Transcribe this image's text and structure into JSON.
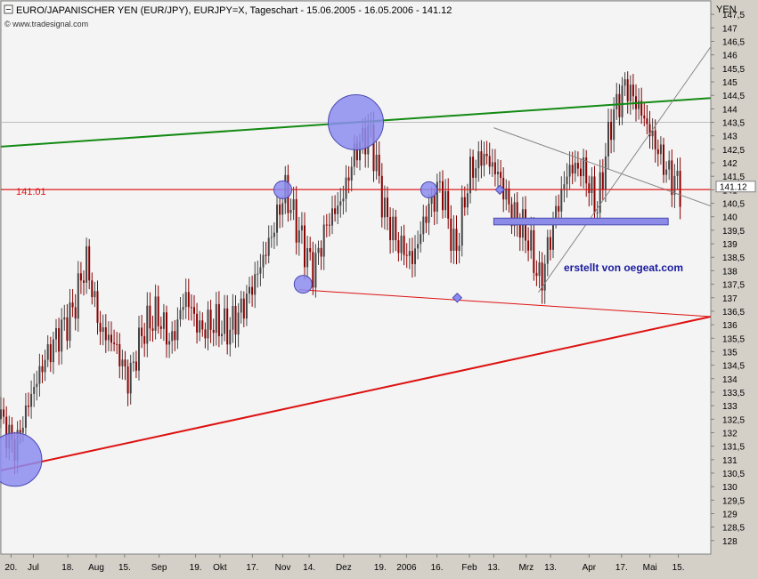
{
  "header": {
    "title": "EURO/JAPANISCHER YEN (EUR/JPY), EURJPY=X, Tageschart - 15.06.2005 - 16.05.2006 - 141.12",
    "source": "© www.tradesignal.com",
    "currency": "YEN"
  },
  "annotations": {
    "level_label": "141.01",
    "last_price": "141.12",
    "author": "erstellt von oegeat.com"
  },
  "colors": {
    "plot_bg": "#f4f4f4",
    "frame_bg": "#d4d0c8",
    "candle_up": "#444444",
    "candle_down": "#8b0000",
    "green_line": "#138a13",
    "red_line": "#dd1111",
    "support_band": "#8c8ce8",
    "circle_fill": "#8c8cf0"
  },
  "chart_data": {
    "type": "line",
    "title": "EURO/JAPANISCHER YEN (EUR/JPY), EURJPY=X, Tageschart - 15.06.2005 - 16.05.2006 - 141.12",
    "xlabel": "",
    "ylabel": "YEN",
    "ylim": [
      127.5,
      148.0
    ],
    "y_tick_labels": [
      "147,5",
      "147",
      "146,5",
      "146",
      "145,5",
      "145",
      "144,5",
      "144",
      "143,5",
      "143",
      "142,5",
      "142",
      "141,5",
      "141",
      "140,5",
      "140",
      "139,5",
      "139",
      "138,5",
      "138",
      "137,5",
      "137",
      "136,5",
      "136",
      "135,5",
      "135",
      "134,5",
      "134",
      "133,5",
      "133",
      "132,5",
      "132",
      "131,5",
      "131",
      "130,5",
      "130",
      "129,5",
      "129",
      "128,5",
      "128"
    ],
    "y_tick_values": [
      147.5,
      147,
      146.5,
      146,
      145.5,
      145,
      144.5,
      144,
      143.5,
      143,
      142.5,
      142,
      141.5,
      141,
      140.5,
      140,
      139.5,
      139,
      138.5,
      138,
      137.5,
      137,
      136.5,
      136,
      135.5,
      135,
      134.5,
      134,
      133.5,
      133,
      132.5,
      132,
      131.5,
      131,
      130.5,
      130,
      129.5,
      129,
      128.5,
      128
    ],
    "x_tick_labels": [
      "20.",
      "Jul",
      "18.",
      "Aug",
      "15.",
      "Sep",
      "19.",
      "Okt",
      "17.",
      "Nov",
      "14.",
      "Dez",
      "19.",
      "2006",
      "16.",
      "Feb",
      "13.",
      "Mrz",
      "13.",
      "Apr",
      "17.",
      "Mai",
      "15."
    ],
    "x_tick_dates": [
      "2005-06-20",
      "2005-07-01",
      "2005-07-18",
      "2005-08-01",
      "2005-08-15",
      "2005-09-01",
      "2005-09-19",
      "2005-10-01",
      "2005-10-17",
      "2005-11-01",
      "2005-11-14",
      "2005-12-01",
      "2005-12-19",
      "2006-01-01",
      "2006-01-16",
      "2006-02-01",
      "2006-02-13",
      "2006-03-01",
      "2006-03-13",
      "2006-04-01",
      "2006-04-17",
      "2006-05-01",
      "2006-05-15"
    ],
    "series": [
      {
        "x": [
          "2005-06-15",
          "2005-06-22",
          "2005-06-29",
          "2005-07-06",
          "2005-07-13",
          "2005-07-20",
          "2005-07-27",
          "2005-08-03",
          "2005-08-10",
          "2005-08-17",
          "2005-08-24",
          "2005-08-31",
          "2005-09-07",
          "2005-09-14",
          "2005-09-21",
          "2005-09-28",
          "2005-10-05",
          "2005-10-12",
          "2005-10-19",
          "2005-10-26",
          "2005-11-02",
          "2005-11-09",
          "2005-11-16",
          "2005-11-23",
          "2005-11-30",
          "2005-12-07",
          "2005-12-14",
          "2005-12-21",
          "2005-12-28",
          "2006-01-04",
          "2006-01-11",
          "2006-01-18",
          "2006-01-25",
          "2006-02-01",
          "2006-02-08",
          "2006-02-15",
          "2006-02-22",
          "2006-03-01",
          "2006-03-08",
          "2006-03-15",
          "2006-03-22",
          "2006-03-29",
          "2006-04-05",
          "2006-04-12",
          "2006-04-19",
          "2006-04-26",
          "2006-05-03",
          "2006-05-10",
          "2006-05-16"
        ],
        "values": [
          132.5,
          131.4,
          133.2,
          134.6,
          135.6,
          136.4,
          138.4,
          135.8,
          135.3,
          133.9,
          135.8,
          136.4,
          135.3,
          137.1,
          135.8,
          136.1,
          135.8,
          136.6,
          137.8,
          139.2,
          141.0,
          139.4,
          138.0,
          139.8,
          140.6,
          142.5,
          143.2,
          140.2,
          139.0,
          138.4,
          140.2,
          141.2,
          138.6,
          141.6,
          142.3,
          141.6,
          140.1,
          139.4,
          137.5,
          140.0,
          141.8,
          141.8,
          140.3,
          143.6,
          144.9,
          144.0,
          142.8,
          141.6,
          141.1
        ]
      }
    ],
    "lines": [
      {
        "name": "green-resistance-trendline",
        "from": [
          "2005-06-15",
          142.6
        ],
        "to": [
          "2006-05-31",
          144.4
        ]
      },
      {
        "name": "red-support-trendline",
        "from": [
          "2005-06-15",
          130.6
        ],
        "to": [
          "2006-05-31",
          136.3
        ]
      },
      {
        "name": "red-lower-trendline",
        "from": [
          "2005-11-09",
          137.3
        ],
        "to": [
          "2006-05-31",
          136.3
        ]
      },
      {
        "name": "gray-downtrend-line",
        "from": [
          "2006-02-13",
          143.3
        ],
        "to": [
          "2006-05-31",
          140.4
        ]
      },
      {
        "name": "gray-uptrend-line",
        "from": [
          "2006-03-07",
          137.2
        ],
        "to": [
          "2006-05-31",
          146.3
        ]
      },
      {
        "name": "horizontal-level-141-01",
        "from": [
          "2005-06-15",
          141.01
        ],
        "to": [
          "2006-05-31",
          141.01
        ]
      }
    ],
    "zones": [
      {
        "name": "support-band",
        "x_from": "2006-02-13",
        "x_to": "2006-05-10",
        "y_from": 139.7,
        "y_to": 139.95
      }
    ],
    "markers": [
      {
        "name": "low-circle-june",
        "x": "2005-06-22",
        "y": 131.0
      },
      {
        "name": "high-circle-dec",
        "x": "2005-12-07",
        "y": 143.5
      },
      {
        "name": "circle-nov-141",
        "x": "2005-11-01",
        "y": 141.0
      },
      {
        "name": "circle-nov-137",
        "x": "2005-11-11",
        "y": 137.5
      },
      {
        "name": "circle-jan-141",
        "x": "2006-01-12",
        "y": 141.0
      },
      {
        "name": "diamond-feb-141",
        "x": "2006-02-16",
        "y": 141.0
      },
      {
        "name": "diamond-jan-137",
        "x": "2006-01-26",
        "y": 137.0
      }
    ],
    "grid": true
  }
}
